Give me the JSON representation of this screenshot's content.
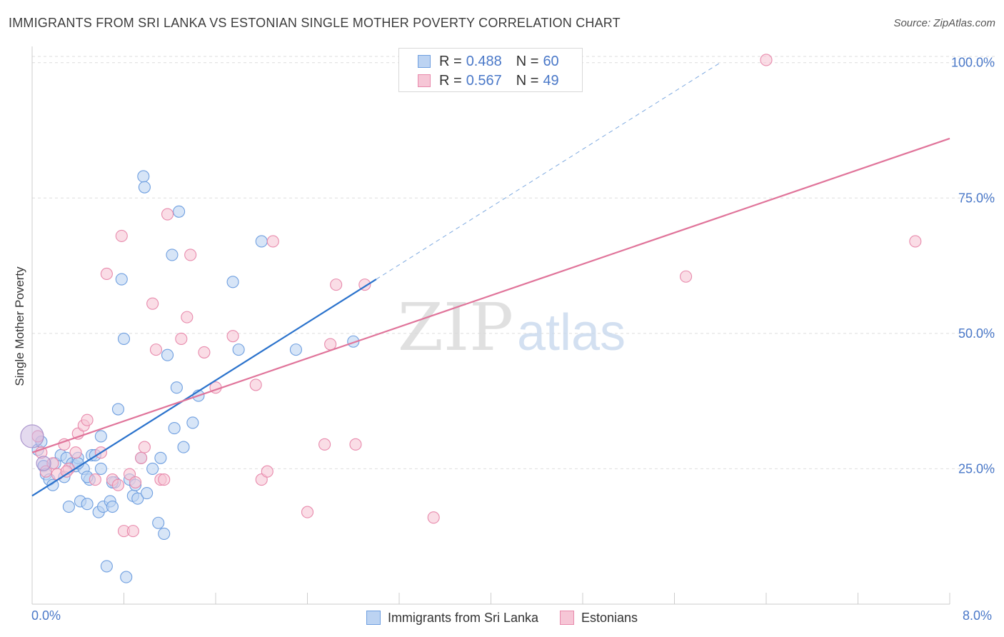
{
  "title": "IMMIGRANTS FROM SRI LANKA VS ESTONIAN SINGLE MOTHER POVERTY CORRELATION CHART",
  "source": "Source: ZipAtlas.com",
  "watermark": {
    "zip": "ZIP",
    "atlas": "atlas"
  },
  "legend": {
    "rows": [
      {
        "r_label": "R =",
        "r_value": "0.488",
        "n_label": "N =",
        "n_value": "60"
      },
      {
        "r_label": "R =",
        "r_value": "0.567",
        "n_label": "N =",
        "n_value": "49"
      }
    ]
  },
  "x_labels": {
    "min": "0.0%",
    "max": "8.0%"
  },
  "chart_data": {
    "type": "scatter",
    "ylabel": "Single Mother Poverty",
    "xlim": [
      0,
      8
    ],
    "ylim": [
      0,
      103
    ],
    "yticks": [
      {
        "value": 25,
        "label": "25.0%"
      },
      {
        "value": 50,
        "label": "50.0%"
      },
      {
        "value": 75,
        "label": "75.0%"
      },
      {
        "value": 100,
        "label": "100.0%"
      }
    ],
    "grid": true,
    "legend_position": "top-center",
    "series": [
      {
        "name": "Immigrants from Sri Lanka",
        "color": "#6f9fe0",
        "fill": "#bcd3f2",
        "line_color": "#2a72cc",
        "trend": {
          "x0": 0,
          "y0": 20,
          "x1": 3.0,
          "y1": 60,
          "extend_to_x": 6.0,
          "extend_to_y": 100
        },
        "points": [
          [
            0.05,
            28.5
          ],
          [
            0.08,
            30
          ],
          [
            0.1,
            25.5
          ],
          [
            0.12,
            24
          ],
          [
            0.15,
            23
          ],
          [
            0.18,
            22
          ],
          [
            0.2,
            26
          ],
          [
            0.25,
            27.5
          ],
          [
            0.28,
            23.5
          ],
          [
            0.3,
            27
          ],
          [
            0.32,
            18
          ],
          [
            0.35,
            26
          ],
          [
            0.38,
            25.5
          ],
          [
            0.4,
            27
          ],
          [
            0.42,
            19
          ],
          [
            0.45,
            25
          ],
          [
            0.48,
            18.5
          ],
          [
            0.5,
            23
          ],
          [
            0.52,
            27.5
          ],
          [
            0.55,
            27.5
          ],
          [
            0.58,
            17
          ],
          [
            0.6,
            31
          ],
          [
            0.62,
            18
          ],
          [
            0.65,
            7
          ],
          [
            0.68,
            19
          ],
          [
            0.7,
            18
          ],
          [
            0.72,
            22.5
          ],
          [
            0.75,
            36
          ],
          [
            0.78,
            60
          ],
          [
            0.8,
            49
          ],
          [
            0.82,
            5
          ],
          [
            0.85,
            23
          ],
          [
            0.88,
            20
          ],
          [
            0.9,
            22
          ],
          [
            0.92,
            19.5
          ],
          [
            0.95,
            27
          ],
          [
            0.97,
            79
          ],
          [
            0.98,
            77
          ],
          [
            1.0,
            20.5
          ],
          [
            1.05,
            25
          ],
          [
            1.1,
            15
          ],
          [
            1.12,
            27
          ],
          [
            1.15,
            13
          ],
          [
            1.18,
            46
          ],
          [
            1.22,
            64.5
          ],
          [
            1.24,
            32.5
          ],
          [
            1.26,
            40
          ],
          [
            1.28,
            72.5
          ],
          [
            1.32,
            29
          ],
          [
            1.4,
            33.5
          ],
          [
            1.45,
            38.5
          ],
          [
            1.75,
            59.5
          ],
          [
            1.8,
            47
          ],
          [
            2.0,
            67
          ],
          [
            2.3,
            47
          ],
          [
            2.8,
            48.5
          ],
          [
            0.6,
            25
          ],
          [
            0.48,
            23.5
          ],
          [
            0.7,
            22.5
          ],
          [
            0.4,
            26
          ]
        ]
      },
      {
        "name": "Estonians",
        "color": "#e88aac",
        "fill": "#f6c6d6",
        "line_color": "#e0749a",
        "trend": {
          "x0": 0,
          "y0": 28,
          "x1": 8.0,
          "y1": 86
        },
        "points": [
          [
            0.05,
            31
          ],
          [
            0.08,
            28
          ],
          [
            0.12,
            24.5
          ],
          [
            0.18,
            26
          ],
          [
            0.22,
            24
          ],
          [
            0.28,
            29.5
          ],
          [
            0.32,
            25
          ],
          [
            0.38,
            28
          ],
          [
            0.4,
            31.5
          ],
          [
            0.45,
            33
          ],
          [
            0.48,
            34
          ],
          [
            0.55,
            23
          ],
          [
            0.6,
            28
          ],
          [
            0.65,
            61
          ],
          [
            0.7,
            23
          ],
          [
            0.75,
            22
          ],
          [
            0.78,
            68
          ],
          [
            0.8,
            13.5
          ],
          [
            0.85,
            24
          ],
          [
            0.88,
            13.5
          ],
          [
            0.9,
            22.5
          ],
          [
            0.95,
            27
          ],
          [
            0.98,
            29
          ],
          [
            1.05,
            55.5
          ],
          [
            1.08,
            47
          ],
          [
            1.12,
            23
          ],
          [
            1.15,
            23
          ],
          [
            1.18,
            72
          ],
          [
            1.3,
            49
          ],
          [
            1.35,
            53
          ],
          [
            1.38,
            64.5
          ],
          [
            1.5,
            46.5
          ],
          [
            1.6,
            40
          ],
          [
            1.75,
            49.5
          ],
          [
            1.95,
            40.5
          ],
          [
            2.0,
            23
          ],
          [
            2.05,
            24.5
          ],
          [
            2.1,
            67
          ],
          [
            2.4,
            17
          ],
          [
            2.55,
            29.5
          ],
          [
            2.6,
            48
          ],
          [
            2.65,
            59
          ],
          [
            2.82,
            29.5
          ],
          [
            2.9,
            59
          ],
          [
            3.5,
            16
          ],
          [
            5.7,
            60.5
          ],
          [
            6.4,
            100.5
          ],
          [
            7.7,
            67
          ],
          [
            0.3,
            24.5
          ]
        ]
      }
    ]
  }
}
